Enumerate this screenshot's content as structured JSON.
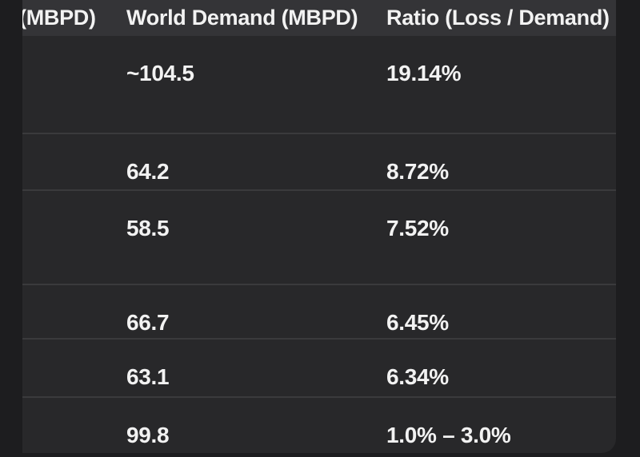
{
  "colors": {
    "page-bg": "#1d1d1f",
    "card-bg": "#28282a",
    "header-bg": "#343437",
    "separator": "#3a3a3c",
    "text": "#f2f2f2"
  },
  "table": {
    "columns": [
      "(MBPD)",
      "World Demand (MBPD)",
      "Ratio (Loss / Demand)"
    ],
    "rows": [
      {
        "demand": "~104.5",
        "ratio": "19.14%"
      },
      {
        "demand": "64.2",
        "ratio": "8.72%"
      },
      {
        "demand": "58.5",
        "ratio": "7.52%"
      },
      {
        "demand": "66.7",
        "ratio": "6.45%"
      },
      {
        "demand": "63.1",
        "ratio": "6.34%"
      },
      {
        "demand": "99.8",
        "ratio": "1.0% – 3.0%"
      }
    ]
  }
}
